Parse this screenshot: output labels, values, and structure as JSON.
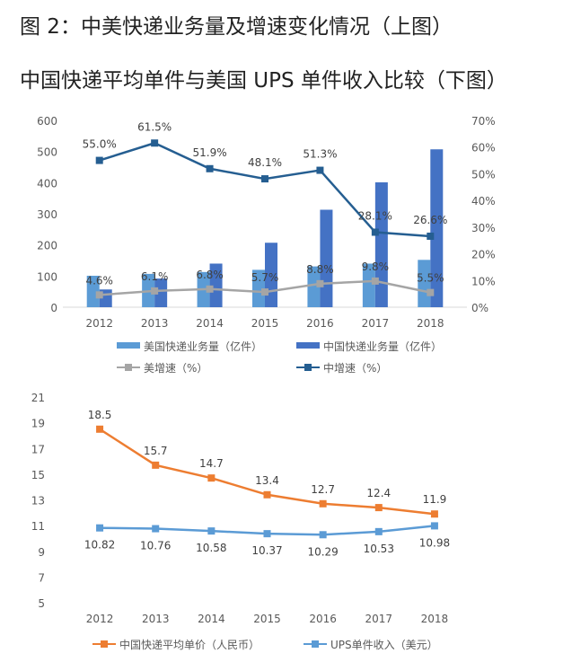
{
  "heading": {
    "line1": "图 2：中美快递业务量及增速变化情况（上图）",
    "line2": "中国快递平均单件与美国 UPS 单件收入比较（下图）"
  },
  "chart_data": [
    {
      "type": "bar",
      "categories": [
        "2012",
        "2013",
        "2014",
        "2015",
        "2016",
        "2017",
        "2018"
      ],
      "ylim": [
        0,
        600
      ],
      "yticks": [
        "0",
        "100",
        "200",
        "300",
        "400",
        "500",
        "600"
      ],
      "y2lim": [
        0,
        70
      ],
      "y2ticks": [
        "0%",
        "10%",
        "20%",
        "30%",
        "40%",
        "50%",
        "60%",
        "70%"
      ],
      "legend_position": "bottom",
      "grid": false,
      "series": [
        {
          "name": "美国快递业务量（亿件）",
          "type": "bar",
          "axis": "left",
          "color": "#5b9bd5",
          "values": [
            101,
            107,
            113,
            120,
            131,
            140,
            152
          ]
        },
        {
          "name": "中国快递业务量（亿件）",
          "type": "bar",
          "axis": "left",
          "color": "#4472c4",
          "values": [
            57,
            92,
            140,
            207,
            313,
            401,
            507
          ]
        },
        {
          "name": "美增速（%）",
          "type": "line",
          "axis": "right",
          "color": "#a5a5a5",
          "values": [
            4.6,
            6.1,
            6.8,
            5.7,
            8.8,
            9.8,
            5.5
          ],
          "labels": [
            "4.6%",
            "6.1%",
            "6.8%",
            "5.7%",
            "8.8%",
            "9.8%",
            "5.5%"
          ]
        },
        {
          "name": "中增速（%）",
          "type": "line",
          "axis": "right",
          "color": "#255e91",
          "values": [
            55.0,
            61.5,
            51.9,
            48.1,
            51.3,
            28.1,
            26.6
          ],
          "labels": [
            "55.0%",
            "61.5%",
            "51.9%",
            "48.1%",
            "51.3%",
            "28.1%",
            "26.6%"
          ]
        }
      ]
    },
    {
      "type": "line",
      "categories": [
        "2012",
        "2013",
        "2014",
        "2015",
        "2016",
        "2017",
        "2018"
      ],
      "ylim": [
        5,
        21
      ],
      "yticks": [
        "5",
        "7",
        "9",
        "11",
        "13",
        "15",
        "17",
        "19",
        "21"
      ],
      "legend_position": "bottom",
      "grid": false,
      "series": [
        {
          "name": "中国快递平均单价（人民币）",
          "color": "#ed7d31",
          "values": [
            18.5,
            15.7,
            14.7,
            13.4,
            12.7,
            12.4,
            11.9
          ],
          "labels": [
            "18.5",
            "15.7",
            "14.7",
            "13.4",
            "12.7",
            "12.4",
            "11.9"
          ]
        },
        {
          "name": "UPS单件收入（美元）",
          "color": "#5b9bd5",
          "values": [
            10.82,
            10.76,
            10.58,
            10.37,
            10.29,
            10.53,
            10.98
          ],
          "labels": [
            "10.82",
            "10.76",
            "10.58",
            "10.37",
            "10.29",
            "10.53",
            "10.98"
          ]
        }
      ]
    }
  ]
}
